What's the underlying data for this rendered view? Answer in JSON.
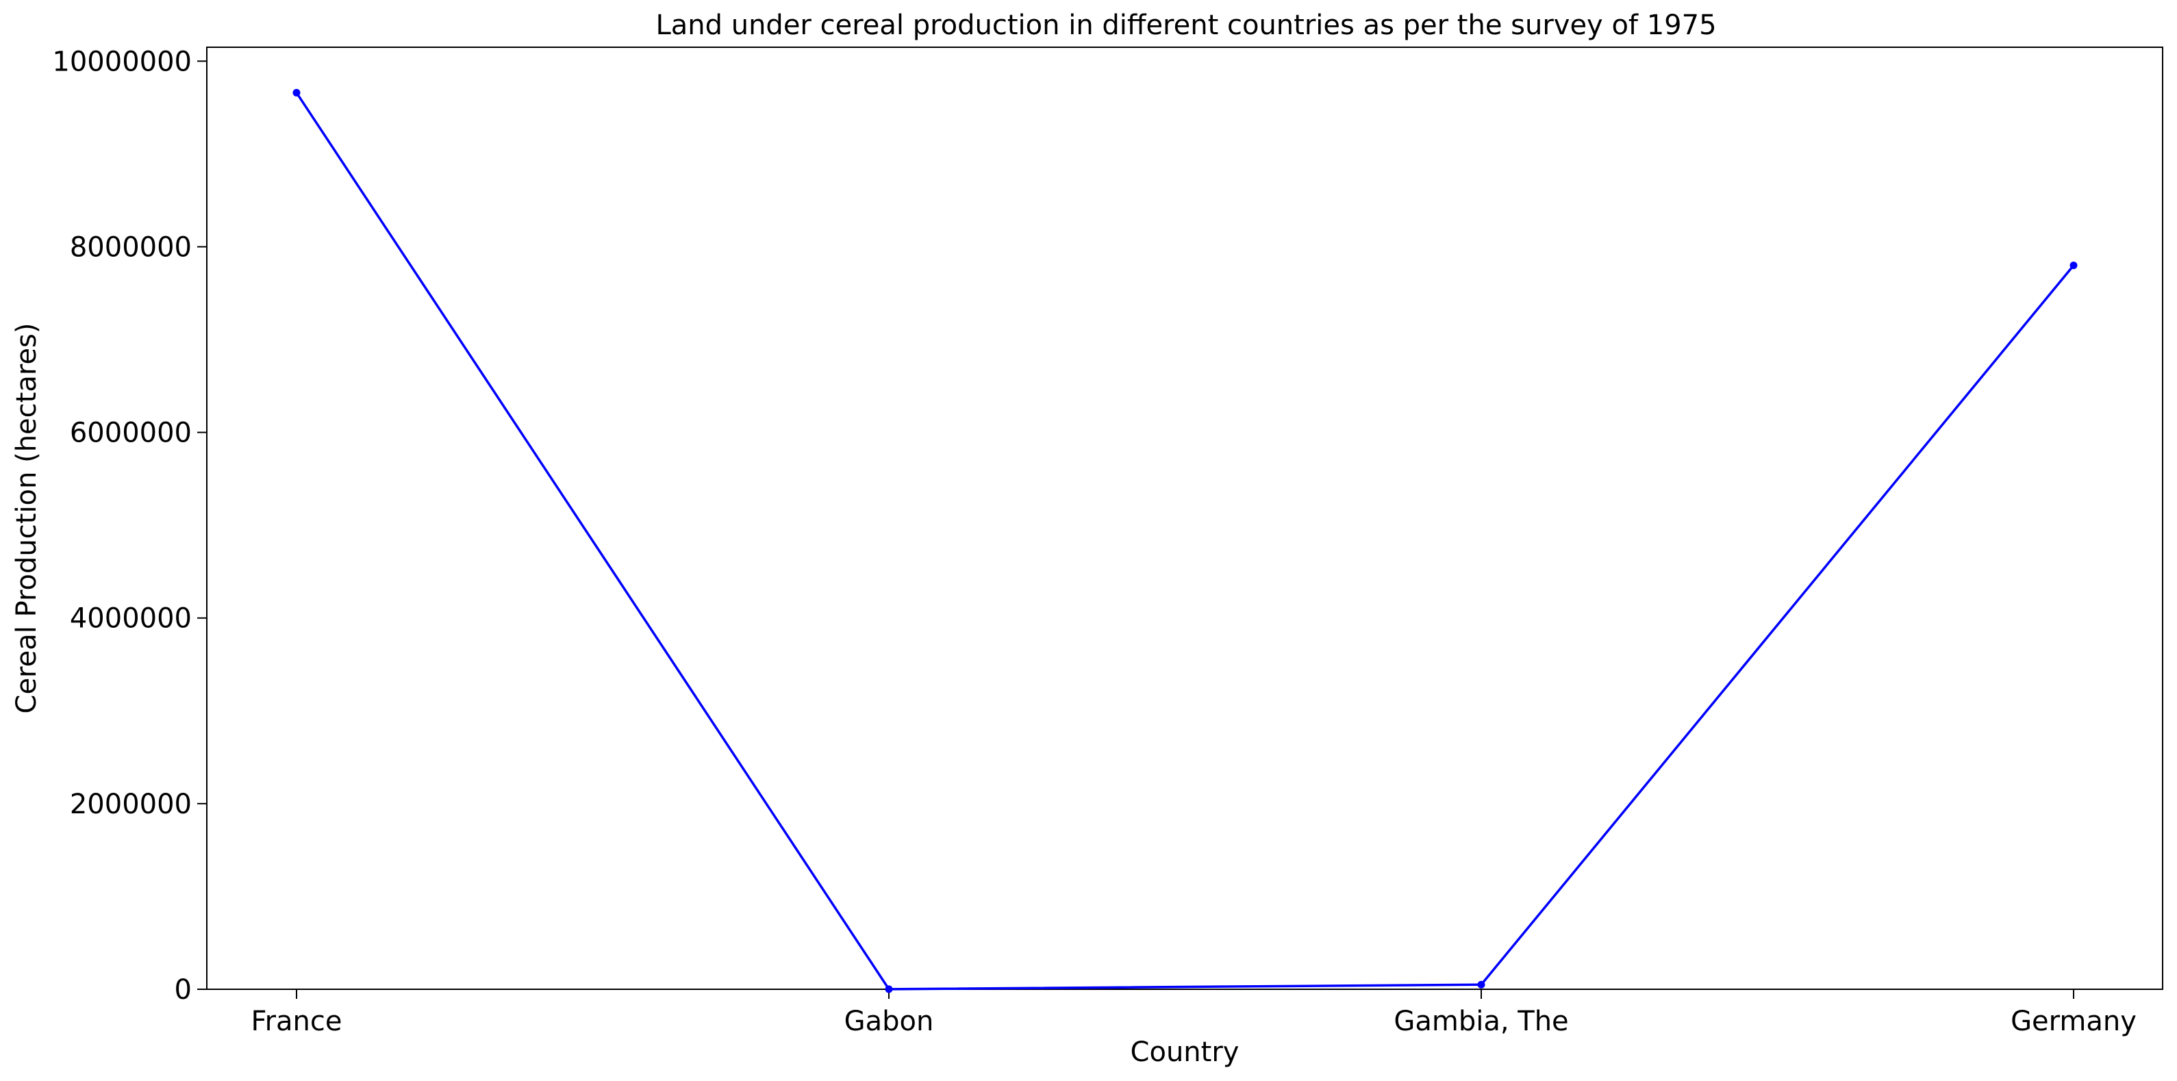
{
  "chart_data": {
    "type": "line",
    "title": "Land under cereal  production in different countries as per the survey of 1975",
    "xlabel": "Country",
    "ylabel": "Cereal Production (hectares)",
    "categories": [
      "France",
      "Gabon",
      "Gambia, The",
      "Germany"
    ],
    "series": [
      {
        "values": [
          9660000,
          1000,
          50000,
          7800000
        ],
        "color": "#0000ff"
      }
    ],
    "ylim": [
      0,
      10150000
    ],
    "yticks": [
      0,
      2000000,
      4000000,
      6000000,
      8000000,
      10000000
    ],
    "ytick_labels": [
      "0",
      "2000000",
      "4000000",
      "6000000",
      "8000000",
      "10000000"
    ],
    "grid": false,
    "legend": "none"
  }
}
